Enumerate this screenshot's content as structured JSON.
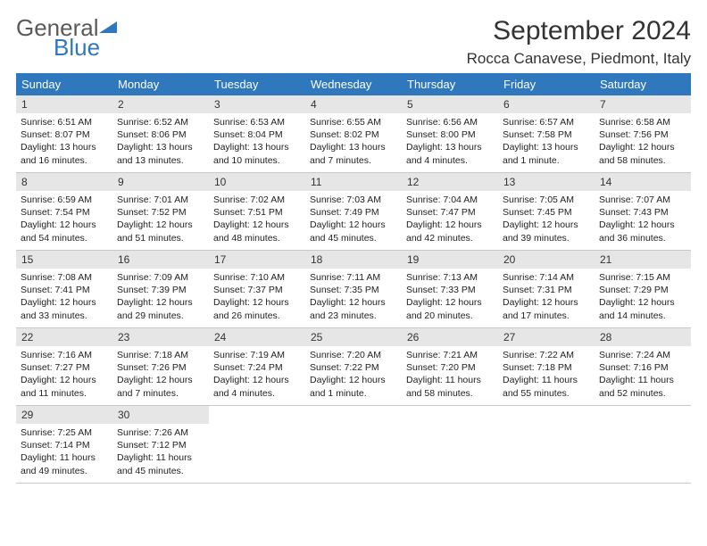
{
  "logo": {
    "word1": "General",
    "word2": "Blue"
  },
  "title": "September 2024",
  "location": "Rocca Canavese, Piedmont, Italy",
  "colors": {
    "header_bar": "#2f78bd",
    "daynum_bg": "#e6e6e6",
    "row_border": "#c8c8c8",
    "logo_gray": "#5a5a5a",
    "logo_blue": "#2f78bd",
    "text": "#222222"
  },
  "weekdays": [
    "Sunday",
    "Monday",
    "Tuesday",
    "Wednesday",
    "Thursday",
    "Friday",
    "Saturday"
  ],
  "weeks": [
    [
      {
        "n": "1",
        "sunrise": "6:51 AM",
        "sunset": "8:07 PM",
        "daylight": "13 hours and 16 minutes."
      },
      {
        "n": "2",
        "sunrise": "6:52 AM",
        "sunset": "8:06 PM",
        "daylight": "13 hours and 13 minutes."
      },
      {
        "n": "3",
        "sunrise": "6:53 AM",
        "sunset": "8:04 PM",
        "daylight": "13 hours and 10 minutes."
      },
      {
        "n": "4",
        "sunrise": "6:55 AM",
        "sunset": "8:02 PM",
        "daylight": "13 hours and 7 minutes."
      },
      {
        "n": "5",
        "sunrise": "6:56 AM",
        "sunset": "8:00 PM",
        "daylight": "13 hours and 4 minutes."
      },
      {
        "n": "6",
        "sunrise": "6:57 AM",
        "sunset": "7:58 PM",
        "daylight": "13 hours and 1 minute."
      },
      {
        "n": "7",
        "sunrise": "6:58 AM",
        "sunset": "7:56 PM",
        "daylight": "12 hours and 58 minutes."
      }
    ],
    [
      {
        "n": "8",
        "sunrise": "6:59 AM",
        "sunset": "7:54 PM",
        "daylight": "12 hours and 54 minutes."
      },
      {
        "n": "9",
        "sunrise": "7:01 AM",
        "sunset": "7:52 PM",
        "daylight": "12 hours and 51 minutes."
      },
      {
        "n": "10",
        "sunrise": "7:02 AM",
        "sunset": "7:51 PM",
        "daylight": "12 hours and 48 minutes."
      },
      {
        "n": "11",
        "sunrise": "7:03 AM",
        "sunset": "7:49 PM",
        "daylight": "12 hours and 45 minutes."
      },
      {
        "n": "12",
        "sunrise": "7:04 AM",
        "sunset": "7:47 PM",
        "daylight": "12 hours and 42 minutes."
      },
      {
        "n": "13",
        "sunrise": "7:05 AM",
        "sunset": "7:45 PM",
        "daylight": "12 hours and 39 minutes."
      },
      {
        "n": "14",
        "sunrise": "7:07 AM",
        "sunset": "7:43 PM",
        "daylight": "12 hours and 36 minutes."
      }
    ],
    [
      {
        "n": "15",
        "sunrise": "7:08 AM",
        "sunset": "7:41 PM",
        "daylight": "12 hours and 33 minutes."
      },
      {
        "n": "16",
        "sunrise": "7:09 AM",
        "sunset": "7:39 PM",
        "daylight": "12 hours and 29 minutes."
      },
      {
        "n": "17",
        "sunrise": "7:10 AM",
        "sunset": "7:37 PM",
        "daylight": "12 hours and 26 minutes."
      },
      {
        "n": "18",
        "sunrise": "7:11 AM",
        "sunset": "7:35 PM",
        "daylight": "12 hours and 23 minutes."
      },
      {
        "n": "19",
        "sunrise": "7:13 AM",
        "sunset": "7:33 PM",
        "daylight": "12 hours and 20 minutes."
      },
      {
        "n": "20",
        "sunrise": "7:14 AM",
        "sunset": "7:31 PM",
        "daylight": "12 hours and 17 minutes."
      },
      {
        "n": "21",
        "sunrise": "7:15 AM",
        "sunset": "7:29 PM",
        "daylight": "12 hours and 14 minutes."
      }
    ],
    [
      {
        "n": "22",
        "sunrise": "7:16 AM",
        "sunset": "7:27 PM",
        "daylight": "12 hours and 11 minutes."
      },
      {
        "n": "23",
        "sunrise": "7:18 AM",
        "sunset": "7:26 PM",
        "daylight": "12 hours and 7 minutes."
      },
      {
        "n": "24",
        "sunrise": "7:19 AM",
        "sunset": "7:24 PM",
        "daylight": "12 hours and 4 minutes."
      },
      {
        "n": "25",
        "sunrise": "7:20 AM",
        "sunset": "7:22 PM",
        "daylight": "12 hours and 1 minute."
      },
      {
        "n": "26",
        "sunrise": "7:21 AM",
        "sunset": "7:20 PM",
        "daylight": "11 hours and 58 minutes."
      },
      {
        "n": "27",
        "sunrise": "7:22 AM",
        "sunset": "7:18 PM",
        "daylight": "11 hours and 55 minutes."
      },
      {
        "n": "28",
        "sunrise": "7:24 AM",
        "sunset": "7:16 PM",
        "daylight": "11 hours and 52 minutes."
      }
    ],
    [
      {
        "n": "29",
        "sunrise": "7:25 AM",
        "sunset": "7:14 PM",
        "daylight": "11 hours and 49 minutes."
      },
      {
        "n": "30",
        "sunrise": "7:26 AM",
        "sunset": "7:12 PM",
        "daylight": "11 hours and 45 minutes."
      },
      null,
      null,
      null,
      null,
      null
    ]
  ],
  "labels": {
    "sunrise": "Sunrise:",
    "sunset": "Sunset:",
    "daylight": "Daylight:"
  }
}
